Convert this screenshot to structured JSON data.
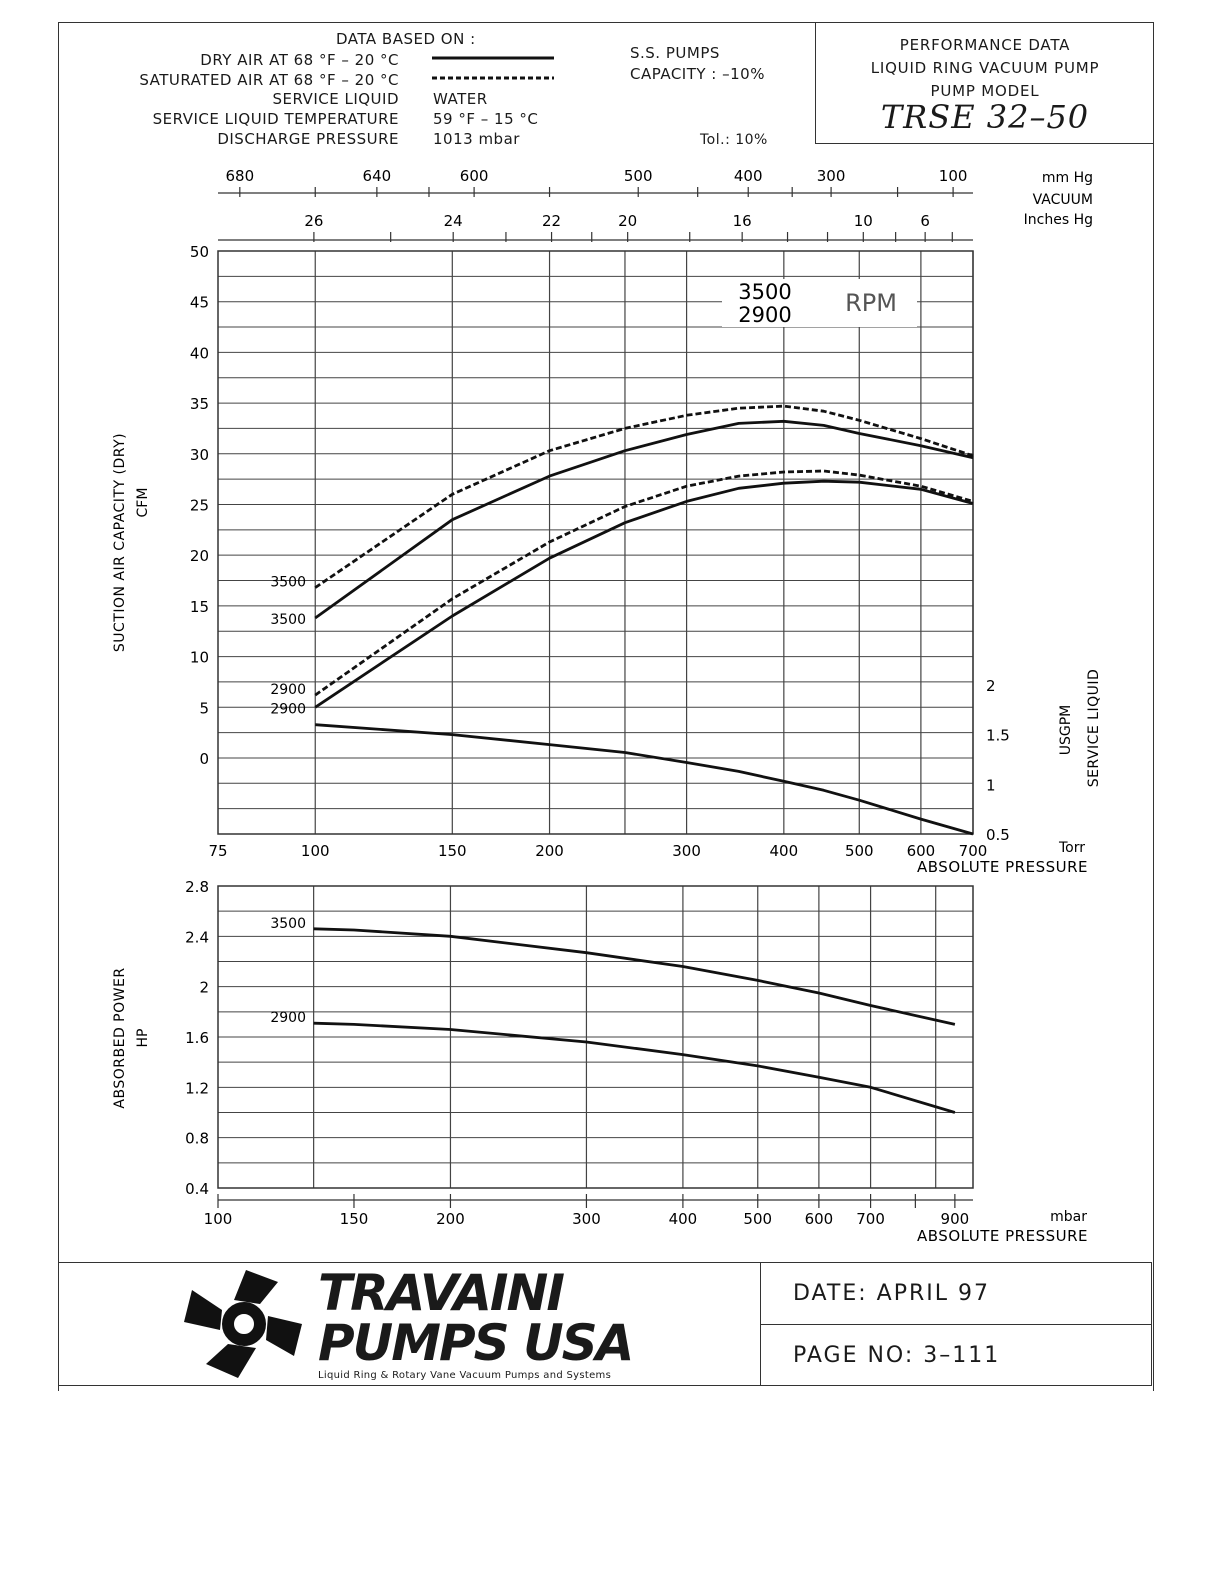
{
  "header": {
    "data_based_on": "DATA BASED ON :",
    "rows": [
      {
        "label": "DRY AIR AT 68 °F – 20 °C",
        "value": ""
      },
      {
        "label": "SATURATED AIR AT 68 °F – 20 °C",
        "value": ""
      },
      {
        "label": "SERVICE LIQUID",
        "value": "WATER"
      },
      {
        "label": "SERVICE LIQUID TEMPERATURE",
        "value": "59 °F – 15 °C"
      },
      {
        "label": "DISCHARGE PRESSURE",
        "value": "1013 mbar"
      }
    ],
    "pumps": "S.S. PUMPS",
    "capacity": "CAPACITY : –10%",
    "tol": "Tol.: 10%"
  },
  "performance_box": {
    "line1": "PERFORMANCE DATA",
    "line2": "LIQUID RING VACUUM PUMP",
    "line3": "PUMP MODEL",
    "model": "TRSE 32–50"
  },
  "footer": {
    "brand_line1": "TRAVAINI",
    "brand_line2": "PUMPS USA",
    "tagline": "Liquid Ring & Rotary Vane Vacuum Pumps and Systems",
    "date": "DATE:  APRIL  97",
    "page": "PAGE  NO:  3–111"
  },
  "chart_data": [
    {
      "type": "line",
      "title": "",
      "xlabel": "ABSOLUTE PRESSURE",
      "x_unit": "Torr",
      "x_scale": "log",
      "xlim": [
        75,
        700
      ],
      "x_ticks": [
        75,
        100,
        150,
        200,
        300,
        400,
        500,
        600,
        700
      ],
      "ylabel": "SUCTION AIR CAPACITY (DRY)",
      "y_unit": "CFM",
      "ylim": [
        -7.5,
        50
      ],
      "y_ticks": [
        0,
        5,
        10,
        15,
        20,
        25,
        30,
        35,
        40,
        45,
        50
      ],
      "top_axis_mmhg": {
        "unit": "mm Hg",
        "ticks": [
          680,
          640,
          600,
          500,
          400,
          300,
          100
        ]
      },
      "top_axis_inhg": {
        "label": "VACUUM",
        "unit": "Inches Hg",
        "ticks": [
          26,
          24,
          22,
          20,
          16,
          10,
          6
        ]
      },
      "rpm_label_top": "3500",
      "rpm_label_bottom": "2900",
      "rpm_word": "RPM",
      "series": [
        {
          "name": "3500",
          "style": "dashed",
          "x": [
            100,
            150,
            200,
            250,
            300,
            350,
            400,
            450,
            500,
            600,
            700
          ],
          "values": [
            16.8,
            26.0,
            30.3,
            32.5,
            33.8,
            34.5,
            34.7,
            34.2,
            33.3,
            31.5,
            29.8
          ]
        },
        {
          "name": "3500",
          "style": "solid",
          "x": [
            100,
            150,
            200,
            250,
            300,
            350,
            400,
            450,
            500,
            600,
            700
          ],
          "values": [
            13.8,
            23.5,
            27.8,
            30.3,
            31.9,
            33.0,
            33.2,
            32.8,
            32.0,
            30.8,
            29.6
          ]
        },
        {
          "name": "2900",
          "style": "dashed",
          "x": [
            100,
            150,
            200,
            250,
            300,
            350,
            400,
            450,
            500,
            600,
            700
          ],
          "values": [
            6.2,
            15.7,
            21.3,
            24.8,
            26.8,
            27.8,
            28.2,
            28.3,
            27.9,
            26.8,
            25.3
          ]
        },
        {
          "name": "2900",
          "style": "solid",
          "x": [
            100,
            150,
            200,
            250,
            300,
            350,
            400,
            450,
            500,
            600,
            700
          ],
          "values": [
            5.0,
            14.0,
            19.7,
            23.2,
            25.3,
            26.6,
            27.1,
            27.3,
            27.2,
            26.5,
            25.1
          ]
        }
      ],
      "service_liquid": {
        "label": "SERVICE LIQUID",
        "unit": "USGPM",
        "ylim": [
          0.5,
          2.0
        ],
        "y_ticks": [
          0.5,
          1.0,
          1.5,
          2.0
        ],
        "x": [
          100,
          150,
          200,
          250,
          300,
          350,
          400,
          450,
          500,
          600,
          700
        ],
        "values": [
          1.6,
          1.5,
          1.4,
          1.32,
          1.22,
          1.13,
          1.03,
          0.94,
          0.84,
          0.65,
          0.5
        ]
      }
    },
    {
      "type": "line",
      "title": "",
      "xlabel": "ABSOLUTE PRESSURE",
      "x_unit": "mbar",
      "x_scale": "log",
      "xlim": [
        100,
        950
      ],
      "x_ticks": [
        100,
        150,
        200,
        300,
        400,
        500,
        600,
        700,
        900
      ],
      "ylabel": "ABSORBED POWER",
      "y_unit": "HP",
      "ylim": [
        0.4,
        2.8
      ],
      "y_ticks": [
        0.4,
        0.8,
        1.2,
        1.6,
        2.0,
        2.4,
        2.8
      ],
      "series": [
        {
          "name": "3500",
          "x": [
            133,
            150,
            200,
            300,
            400,
            500,
            600,
            700,
            900
          ],
          "values": [
            2.46,
            2.45,
            2.4,
            2.27,
            2.16,
            2.05,
            1.95,
            1.85,
            1.7
          ]
        },
        {
          "name": "2900",
          "x": [
            133,
            150,
            200,
            300,
            400,
            500,
            600,
            700,
            900
          ],
          "values": [
            1.71,
            1.7,
            1.66,
            1.56,
            1.46,
            1.37,
            1.28,
            1.2,
            1.0
          ]
        }
      ]
    }
  ]
}
